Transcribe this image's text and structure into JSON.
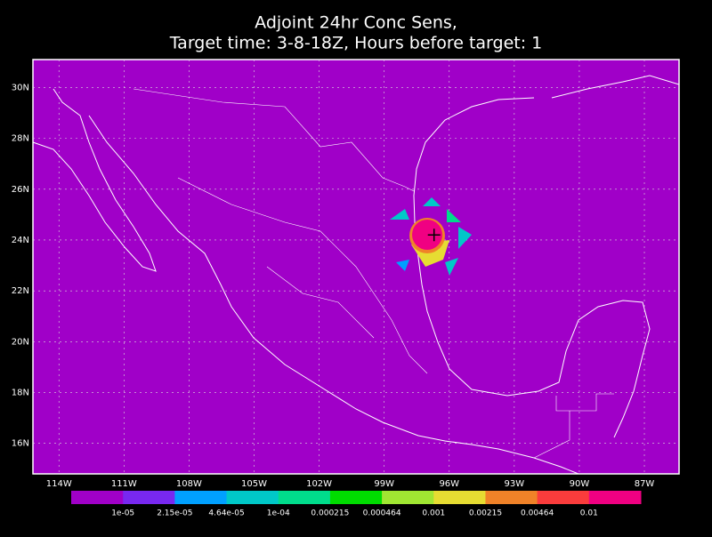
{
  "title": [
    "Adjoint 24hr Conc Sens,",
    "Target time: 3-8-18Z, Hours before target: 1"
  ],
  "map": {
    "lat_ticks": [
      {
        "value": 30,
        "label": "30N"
      },
      {
        "value": 28,
        "label": "28N"
      },
      {
        "value": 26,
        "label": "26N"
      },
      {
        "value": 24,
        "label": "24N"
      },
      {
        "value": 22,
        "label": "22N"
      },
      {
        "value": 20,
        "label": "20N"
      },
      {
        "value": 18,
        "label": "18N"
      },
      {
        "value": 16,
        "label": "16N"
      }
    ],
    "lon_ticks": [
      {
        "value": -114,
        "label": "114W"
      },
      {
        "value": -111,
        "label": "111W"
      },
      {
        "value": -108,
        "label": "108W"
      },
      {
        "value": -105,
        "label": "105W"
      },
      {
        "value": -102,
        "label": "102W"
      },
      {
        "value": -99,
        "label": "99W"
      },
      {
        "value": -96,
        "label": "96W"
      },
      {
        "value": -93,
        "label": "93W"
      },
      {
        "value": -90,
        "label": "90W"
      },
      {
        "value": -87,
        "label": "87W"
      }
    ],
    "lonlim": [
      -115.2,
      -85.4
    ],
    "latlim": [
      31.1,
      14.8
    ],
    "target": {
      "lon": -96.7,
      "lat": 24.2
    }
  },
  "colorbar": {
    "colors": [
      "#a000c8",
      "#7828f0",
      "#00a0ff",
      "#00c8c8",
      "#00dc8c",
      "#00dc00",
      "#a0e632",
      "#e6dc32",
      "#f08228",
      "#fa3c3c",
      "#f00082"
    ],
    "labels": [
      "1e-05",
      "2.15e-05",
      "4.64e-05",
      "1e-04",
      "0.000215",
      "0.000464",
      "0.001",
      "0.00215",
      "0.00464",
      "0.01"
    ]
  }
}
